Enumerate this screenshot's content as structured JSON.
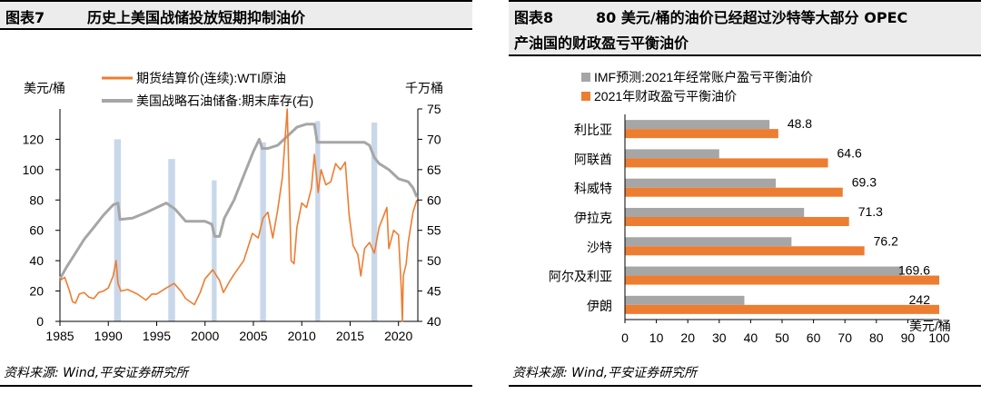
{
  "left": {
    "fig_no": "图表7",
    "title": "历史上美国战储投放短期抑制油价",
    "source": "资料来源: Wind,平安证券研究所",
    "colors": {
      "oil": "#ED7D31",
      "spr": "#A6A6A6",
      "band": "#C9D7EA"
    },
    "chart_data": {
      "type": "line",
      "title": "",
      "ylabel_left": "美元/桶",
      "ylabel_right": "千万桶",
      "xlim": [
        1985,
        2022
      ],
      "ylim_left": [
        0,
        140
      ],
      "ylim_right": [
        40,
        75
      ],
      "x_ticks": [
        1985,
        1990,
        1995,
        2000,
        2005,
        2010,
        2015,
        2020
      ],
      "y_ticks_left": [
        0,
        20,
        40,
        60,
        80,
        100,
        120
      ],
      "y_ticks_right": [
        40,
        45,
        50,
        55,
        60,
        65,
        70,
        75
      ],
      "legend": [
        "期货结算价(连续):WTI原油",
        "美国战略石油储备:期末库存(右)"
      ],
      "legend_position": "top",
      "release_periods": [
        {
          "start": 1990.6,
          "end": 1991.3,
          "top": 120
        },
        {
          "start": 1996.2,
          "end": 1996.9,
          "top": 107
        },
        {
          "start": 2000.7,
          "end": 2001.2,
          "top": 93
        },
        {
          "start": 2005.7,
          "end": 2006.3,
          "top": 118
        },
        {
          "start": 2011.4,
          "end": 2011.9,
          "top": 132
        },
        {
          "start": 2017.2,
          "end": 2017.8,
          "top": 131
        }
      ],
      "series": [
        {
          "name": "期货结算价(连续):WTI原油",
          "axis": "left",
          "x": [
            1985.0,
            1985.5,
            1986.0,
            1986.3,
            1986.6,
            1987.0,
            1987.5,
            1988.0,
            1988.5,
            1989.0,
            1989.5,
            1990.0,
            1990.5,
            1990.8,
            1991.0,
            1991.3,
            1992.0,
            1993.0,
            1993.9,
            1994.5,
            1995.0,
            1996.0,
            1996.8,
            1997.5,
            1998.0,
            1998.9,
            1999.5,
            2000.0,
            2000.8,
            2001.5,
            2001.9,
            2002.5,
            2003.0,
            2004.0,
            2004.9,
            2005.5,
            2006.0,
            2006.5,
            2007.0,
            2007.5,
            2008.0,
            2008.5,
            2008.9,
            2009.2,
            2009.5,
            2010.0,
            2010.5,
            2011.0,
            2011.3,
            2011.7,
            2012.0,
            2012.5,
            2013.0,
            2013.5,
            2014.0,
            2014.5,
            2014.9,
            2015.3,
            2015.8,
            2016.1,
            2016.5,
            2017.0,
            2017.5,
            2018.0,
            2018.8,
            2019.0,
            2019.5,
            2020.0,
            2020.3,
            2020.4,
            2020.5,
            2020.8,
            2021.0,
            2021.5,
            2021.9
          ],
          "y": [
            27,
            29,
            20,
            13,
            12,
            18,
            19,
            16,
            15,
            19,
            20,
            22,
            30,
            40,
            25,
            20,
            21,
            18,
            14,
            18,
            18,
            22,
            25,
            20,
            15,
            11,
            19,
            28,
            34,
            27,
            19,
            26,
            31,
            40,
            58,
            55,
            68,
            72,
            55,
            73,
            95,
            140,
            40,
            38,
            62,
            78,
            75,
            88,
            110,
            85,
            100,
            90,
            92,
            104,
            100,
            105,
            70,
            50,
            44,
            30,
            48,
            52,
            45,
            62,
            75,
            48,
            60,
            57,
            20,
            0,
            30,
            38,
            52,
            72,
            80
          ]
        },
        {
          "name": "美国战略石油储备:期末库存(右)",
          "axis": "right",
          "x": [
            1985.0,
            1985.7,
            1986.5,
            1987.5,
            1988.5,
            1989.5,
            1990.5,
            1991.0,
            1991.2,
            1992.5,
            1994.0,
            1996.0,
            1996.9,
            1998.0,
            1999.0,
            2000.0,
            2000.7,
            2001.0,
            2001.5,
            2002.0,
            2003.0,
            2004.0,
            2005.0,
            2005.6,
            2005.9,
            2006.5,
            2007.5,
            2008.5,
            2009.5,
            2010.5,
            2011.3,
            2011.6,
            2012.5,
            2013.5,
            2014.5,
            2015.5,
            2016.5,
            2017.0,
            2017.5,
            2018.0,
            2019.0,
            2020.0,
            2021.0,
            2021.5,
            2021.9
          ],
          "y": [
            47,
            49,
            51,
            53.5,
            55.5,
            57.5,
            59.2,
            59.5,
            56.8,
            57,
            58,
            59.5,
            58.5,
            56.5,
            56.5,
            56.5,
            56,
            54,
            54,
            57,
            60,
            64,
            68,
            70,
            68.5,
            68.5,
            69,
            70.5,
            72,
            72.5,
            72.5,
            69.5,
            69.5,
            69.5,
            69.5,
            69.5,
            69.5,
            69,
            67,
            66,
            65,
            63.5,
            63,
            62,
            60.5
          ]
        }
      ]
    }
  },
  "right": {
    "fig_no": "图表8",
    "title_line1": "80 美元/桶的油价已经超过沙特等大部分 OPEC",
    "title_line2": "产油国的财政盈亏平衡油价",
    "source": "资料来源: Wind,平安证券研究所",
    "colors": {
      "imf": "#A6A6A6",
      "fiscal": "#ED7D31"
    },
    "chart_data": {
      "type": "bar",
      "orientation": "horizontal",
      "title": "",
      "categories": [
        "利比亚",
        "阿联酋",
        "科威特",
        "伊拉克",
        "沙特",
        "阿尔及利亚",
        "伊朗"
      ],
      "series": [
        {
          "name": "IMF预测:2021年经常账户盈亏平衡油价",
          "values": [
            46,
            30,
            48,
            57,
            53,
            88,
            38
          ]
        },
        {
          "name": "2021年财政盈亏平衡油价",
          "values": [
            48.8,
            64.6,
            69.3,
            71.3,
            76.2,
            169.6,
            242
          ],
          "labels": [
            "48.8",
            "64.6",
            "69.3",
            "71.3",
            "76.2",
            "169.6",
            "242"
          ]
        }
      ],
      "xlim": [
        0,
        100
      ],
      "x_ticks": [
        0,
        10,
        20,
        30,
        40,
        50,
        60,
        70,
        80,
        90,
        100
      ],
      "unit_label": "美元/桶",
      "legend_position": "top-left"
    }
  }
}
